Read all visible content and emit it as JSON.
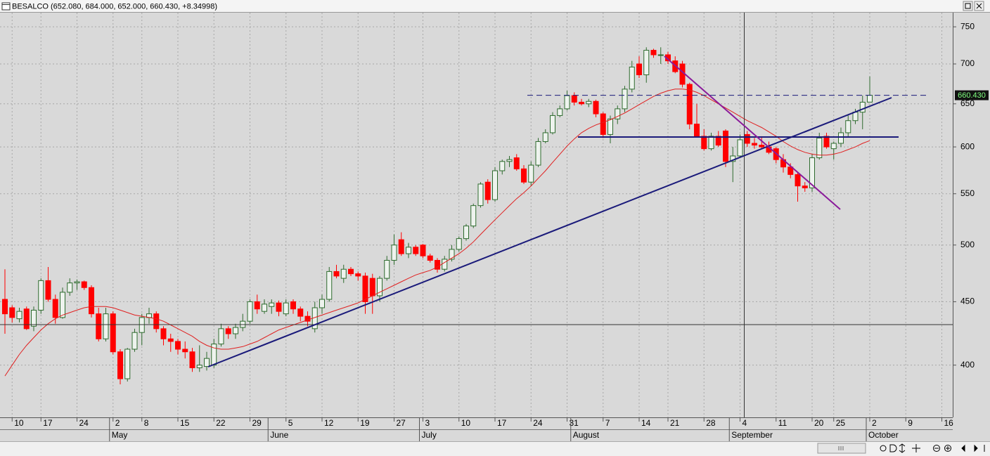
{
  "chart_data": {
    "type": "candlestick",
    "title": "BESALCO (652.080, 684.000, 652.000, 660.430, +8.34998)",
    "categories": [
      null,
      "10",
      null,
      null,
      null,
      "17",
      null,
      null,
      null,
      null,
      "24",
      null,
      null,
      null,
      null,
      "2",
      null,
      null,
      null,
      "8",
      null,
      null,
      null,
      null,
      "15",
      null,
      null,
      null,
      null,
      "22",
      null,
      null,
      null,
      null,
      "29",
      null,
      null,
      null,
      null,
      "5",
      null,
      null,
      null,
      null,
      "12",
      null,
      null,
      null,
      null,
      "19",
      null,
      null,
      null,
      null,
      "27",
      null,
      null,
      null,
      "3",
      null,
      null,
      null,
      null,
      "10",
      null,
      null,
      null,
      null,
      "17",
      null,
      null,
      null,
      null,
      "24",
      null,
      null,
      null,
      null,
      "31",
      null,
      null,
      null,
      null,
      "7",
      null,
      null,
      null,
      null,
      "14",
      null,
      null,
      null,
      "21",
      null,
      null,
      null,
      null,
      "28",
      null,
      null,
      null,
      null,
      "4",
      null,
      null,
      null,
      null,
      "11",
      null,
      null,
      null,
      null,
      "20",
      null,
      null,
      "25",
      null,
      null,
      null,
      null,
      "2",
      null,
      null,
      null,
      null,
      "9",
      null,
      null,
      null,
      null,
      "16"
    ],
    "months": [
      null,
      null,
      null,
      null,
      null,
      null,
      null,
      null,
      null,
      null,
      null,
      null,
      null,
      null,
      null,
      "May",
      null,
      null,
      null,
      null,
      null,
      null,
      null,
      null,
      null,
      null,
      null,
      null,
      null,
      null,
      null,
      null,
      null,
      null,
      null,
      null,
      null,
      "June",
      null,
      null,
      null,
      null,
      null,
      null,
      null,
      null,
      null,
      null,
      null,
      null,
      null,
      null,
      null,
      null,
      null,
      null,
      null,
      null,
      "July",
      null,
      null,
      null,
      null,
      null,
      null,
      null,
      null,
      null,
      null,
      null,
      null,
      null,
      null,
      null,
      null,
      null,
      null,
      null,
      null,
      "August",
      null,
      null,
      null,
      null,
      null,
      null,
      null,
      null,
      null,
      null,
      null,
      null,
      null,
      null,
      null,
      null,
      null,
      null,
      null,
      null,
      null,
      "September",
      null,
      null,
      null,
      null,
      null,
      null,
      null,
      null,
      null,
      null,
      null,
      null,
      null,
      null,
      null,
      null,
      null,
      null,
      "October",
      null,
      null,
      null,
      null,
      null,
      null,
      null,
      null,
      null,
      null
    ],
    "open": [
      452,
      445,
      436,
      444,
      430,
      443,
      468,
      452,
      437,
      458,
      466,
      467,
      462,
      440,
      420,
      440,
      410,
      390,
      412,
      425,
      437,
      440,
      428,
      420,
      418,
      412,
      410,
      398,
      399,
      400,
      416,
      428,
      424,
      429,
      434,
      450,
      442,
      446,
      449,
      440,
      450,
      444,
      438,
      428,
      445,
      452,
      476,
      470,
      478,
      474,
      472,
      470,
      455,
      470,
      486,
      505,
      492,
      498,
      500,
      490,
      486,
      478,
      487,
      496,
      506,
      518,
      538,
      562,
      544,
      574,
      584,
      588,
      576,
      562,
      580,
      606,
      616,
      636,
      644,
      660,
      652,
      650,
      653,
      638,
      614,
      632,
      644,
      668,
      700,
      686,
      718,
      712,
      712,
      704,
      700,
      674,
      626,
      612,
      598,
      612,
      618,
      584,
      590,
      614,
      604,
      602,
      600,
      598,
      586,
      578,
      570,
      558,
      556,
      588,
      612,
      598,
      604,
      616,
      630,
      640,
      652.08,
      null,
      null,
      null,
      null,
      null,
      null,
      null,
      null,
      null,
      null
    ],
    "high": [
      478,
      447,
      445,
      446,
      446,
      470,
      480,
      456,
      462,
      470,
      469,
      468,
      464,
      445,
      445,
      442,
      412,
      413,
      428,
      440,
      445,
      442,
      430,
      424,
      420,
      418,
      413,
      415,
      410,
      420,
      432,
      430,
      432,
      440,
      452,
      456,
      452,
      452,
      451,
      452,
      452,
      446,
      442,
      450,
      456,
      480,
      482,
      482,
      480,
      476,
      475,
      474,
      472,
      490,
      510,
      512,
      502,
      500,
      501,
      492,
      488,
      490,
      500,
      508,
      520,
      540,
      562,
      565,
      578,
      586,
      590,
      592,
      580,
      584,
      610,
      620,
      640,
      648,
      666,
      664,
      656,
      656,
      655,
      640,
      636,
      648,
      672,
      704,
      710,
      722,
      720,
      722,
      716,
      710,
      704,
      676,
      650,
      620,
      616,
      618,
      620,
      600,
      614,
      618,
      610,
      612,
      606,
      600,
      592,
      582,
      572,
      562,
      592,
      616,
      616,
      606,
      622,
      636,
      644,
      660,
      684,
      null,
      null,
      null,
      null,
      null,
      null,
      null,
      null,
      null,
      null
    ],
    "low": [
      424,
      433,
      433,
      427,
      426,
      440,
      450,
      432,
      436,
      455,
      460,
      460,
      437,
      418,
      418,
      408,
      386,
      388,
      410,
      415,
      432,
      425,
      415,
      410,
      408,
      405,
      395,
      395,
      396,
      398,
      414,
      420,
      420,
      426,
      432,
      440,
      440,
      440,
      438,
      438,
      440,
      434,
      430,
      425,
      440,
      450,
      470,
      466,
      472,
      468,
      440,
      440,
      450,
      468,
      482,
      490,
      488,
      490,
      488,
      484,
      475,
      476,
      485,
      494,
      504,
      516,
      536,
      540,
      542,
      570,
      578,
      574,
      560,
      558,
      578,
      604,
      614,
      634,
      642,
      648,
      648,
      646,
      634,
      610,
      604,
      626,
      640,
      664,
      682,
      676,
      708,
      700,
      700,
      688,
      670,
      620,
      612,
      596,
      596,
      600,
      578,
      562,
      588,
      600,
      598,
      598,
      592,
      582,
      572,
      566,
      542,
      552,
      552,
      586,
      598,
      586,
      600,
      612,
      626,
      620,
      652,
      null,
      null,
      null,
      null,
      null,
      null,
      null,
      null,
      null,
      null
    ],
    "close": [
      440,
      437,
      442,
      428,
      443,
      468,
      452,
      437,
      458,
      466,
      467,
      462,
      440,
      420,
      440,
      410,
      390,
      412,
      425,
      437,
      440,
      428,
      420,
      418,
      412,
      410,
      398,
      400,
      405,
      416,
      428,
      424,
      429,
      434,
      450,
      444,
      448,
      449,
      442,
      449,
      444,
      438,
      434,
      445,
      452,
      476,
      472,
      478,
      474,
      472,
      450,
      455,
      470,
      486,
      500,
      492,
      498,
      492,
      490,
      486,
      478,
      487,
      496,
      506,
      518,
      538,
      560,
      544,
      574,
      584,
      586,
      576,
      562,
      580,
      606,
      616,
      636,
      644,
      660,
      652,
      650,
      653,
      638,
      614,
      632,
      644,
      668,
      696,
      686,
      718,
      712,
      712,
      704,
      690,
      674,
      626,
      612,
      598,
      612,
      602,
      584,
      590,
      608,
      604,
      602,
      600,
      594,
      586,
      578,
      570,
      558,
      556,
      588,
      610,
      600,
      604,
      616,
      630,
      640,
      652,
      660.43,
      null,
      null,
      null,
      null,
      null,
      null,
      null,
      null,
      null,
      null
    ],
    "moving_average": {
      "color": "#e02020",
      "values": [
        392,
        400,
        408,
        415,
        421,
        427,
        432,
        436,
        439,
        441,
        443,
        445,
        446,
        446,
        446,
        445,
        443,
        441,
        439,
        438,
        437,
        436,
        434,
        431,
        428,
        425,
        422,
        418,
        415,
        413,
        412,
        412,
        413,
        414,
        416,
        418,
        421,
        424,
        427,
        429,
        431,
        433,
        435,
        437,
        439,
        441,
        443,
        445,
        447,
        449,
        452,
        455,
        458,
        461,
        464,
        467,
        470,
        473,
        475,
        477,
        480,
        484,
        488,
        492,
        497,
        503,
        510,
        517,
        524,
        531,
        538,
        545,
        551,
        558,
        566,
        574,
        583,
        592,
        601,
        609,
        616,
        621,
        625,
        628,
        631,
        635,
        639,
        644,
        649,
        654,
        659,
        663,
        666,
        668,
        668,
        667,
        664,
        660,
        655,
        650,
        645,
        640,
        635,
        630,
        626,
        622,
        617,
        612,
        606,
        601,
        597,
        594,
        592,
        591,
        591,
        592,
        594,
        597,
        600,
        604,
        607,
        null,
        null,
        null,
        null,
        null,
        null,
        null,
        null,
        null,
        null
      ]
    },
    "last_price": {
      "value": 660.43,
      "label": "660.430"
    },
    "up_color": "#2e6b2e",
    "up_fill": "#eef3ee",
    "down_color": "#ff0000",
    "ylim": [
      363,
      770
    ],
    "yticks": [
      400,
      450,
      500,
      550,
      600,
      650,
      700,
      750
    ],
    "log_scale": true,
    "grid": true
  }
}
